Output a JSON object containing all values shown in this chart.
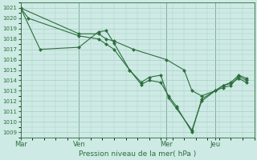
{
  "bg_color": "#ceeae4",
  "grid_color": "#a8cec8",
  "line_color": "#2d6e3e",
  "marker_color": "#2d6e3e",
  "xlabel": "Pression niveau de la mer( hPa )",
  "ylim": [
    1008.5,
    1021.5
  ],
  "yticks": [
    1009,
    1010,
    1011,
    1012,
    1013,
    1014,
    1015,
    1016,
    1017,
    1018,
    1019,
    1020,
    1021
  ],
  "xlim": [
    0,
    120
  ],
  "xtick_labels": [
    "Mar",
    "Ven",
    "Mer",
    "Jeu"
  ],
  "xtick_positions": [
    0,
    30,
    75,
    100
  ],
  "vlines": [
    0,
    30,
    75,
    100
  ],
  "series": [
    [
      [
        0,
        4,
        30,
        40,
        44,
        48,
        56,
        62,
        66,
        72,
        76,
        80,
        88,
        93,
        100,
        104,
        108,
        112,
        116
      ],
      [
        1021,
        1020,
        1018.3,
        1018,
        1017.5,
        1017.0,
        1015.0,
        1013.6,
        1014.0,
        1013.8,
        1012.5,
        1011.5,
        1009.0,
        1012.2,
        1013.0,
        1013.3,
        1013.5,
        1014.4,
        1014.0
      ]
    ],
    [
      [
        0,
        10,
        30,
        40,
        44,
        48,
        56,
        62,
        66,
        72,
        76,
        80,
        88,
        93,
        100,
        104,
        108,
        112,
        116
      ],
      [
        1021,
        1017.0,
        1017.2,
        1018.7,
        1018.8,
        1017.6,
        1015.0,
        1013.8,
        1014.3,
        1014.5,
        1012.3,
        1011.3,
        1009.2,
        1012.0,
        1013.0,
        1013.5,
        1013.7,
        1014.2,
        1013.8
      ]
    ],
    [
      [
        0,
        30,
        40,
        44,
        48,
        58,
        75,
        84,
        88,
        93,
        100,
        104,
        108,
        112,
        116
      ],
      [
        1021,
        1018.5,
        1018.5,
        1018.0,
        1017.8,
        1017.0,
        1016.0,
        1015.0,
        1013.0,
        1012.5,
        1013.0,
        1013.5,
        1013.8,
        1014.5,
        1014.2
      ]
    ]
  ]
}
